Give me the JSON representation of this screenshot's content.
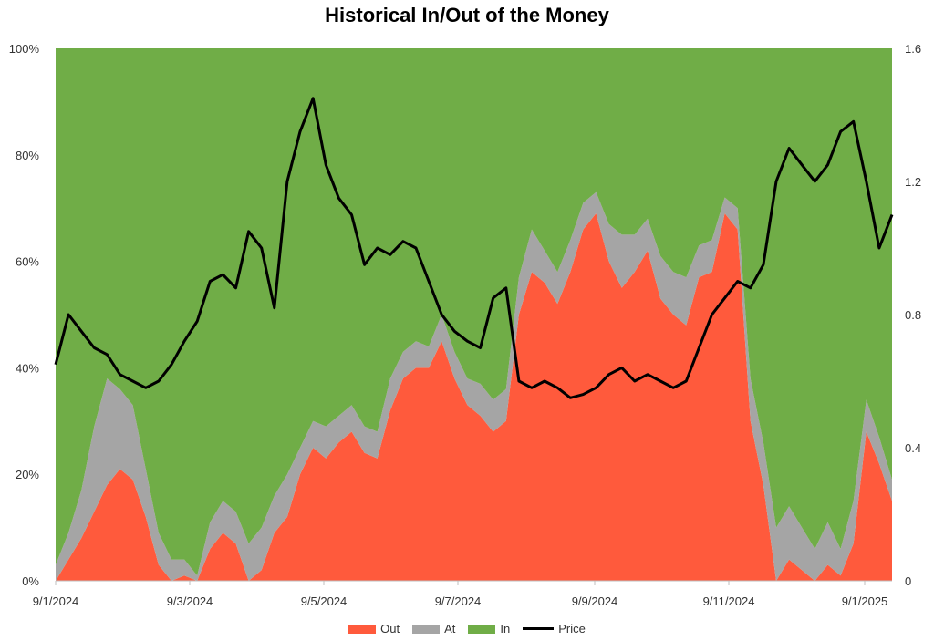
{
  "chart_data": {
    "type": "area",
    "title": "Historical In/Out of the Money",
    "x_tick_labels": [
      "9/1/2024",
      "9/3/2024",
      "9/5/2024",
      "9/7/2024",
      "9/9/2024",
      "9/11/2024",
      "9/1/2025"
    ],
    "y_left": {
      "ticks": [
        "0%",
        "20%",
        "40%",
        "60%",
        "80%",
        "100%"
      ],
      "range": [
        0,
        100
      ],
      "unit": "%"
    },
    "y_right": {
      "ticks": [
        "0",
        "0.4",
        "0.8",
        "1.2",
        "1.6"
      ],
      "range": [
        0,
        1.6
      ]
    },
    "stacked": true,
    "series": [
      {
        "name": "Out",
        "color": "#ff5a3c",
        "values": [
          0,
          4,
          8,
          13,
          18,
          21,
          19,
          12,
          3,
          0,
          1,
          0,
          6,
          9,
          7,
          0,
          2,
          9,
          12,
          20,
          25,
          23,
          26,
          28,
          24,
          23,
          32,
          38,
          40,
          40,
          45,
          38,
          33,
          31,
          28,
          30,
          50,
          58,
          56,
          52,
          58,
          66,
          69,
          60,
          55,
          58,
          62,
          53,
          50,
          48,
          57,
          58,
          69,
          66,
          30,
          18,
          0,
          4,
          2,
          0,
          3,
          1,
          7,
          28,
          22,
          15
        ]
      },
      {
        "name": "At",
        "color": "#a5a5a5",
        "values": [
          3,
          5,
          9,
          16,
          20,
          15,
          14,
          9,
          6,
          4,
          3,
          1,
          5,
          6,
          6,
          7,
          8,
          7,
          8,
          5,
          5,
          6,
          5,
          5,
          5,
          5,
          6,
          5,
          5,
          4,
          5,
          5,
          5,
          6,
          6,
          6,
          7,
          8,
          6,
          6,
          6,
          5,
          4,
          7,
          10,
          7,
          6,
          8,
          8,
          9,
          6,
          6,
          3,
          4,
          8,
          8,
          10,
          10,
          8,
          6,
          8,
          5,
          8,
          6,
          5,
          4
        ]
      },
      {
        "name": "In",
        "color": "#70ad47",
        "values": [
          97,
          91,
          83,
          71,
          62,
          64,
          67,
          79,
          91,
          96,
          96,
          99,
          89,
          85,
          87,
          93,
          90,
          84,
          80,
          75,
          70,
          71,
          69,
          67,
          71,
          72,
          62,
          57,
          55,
          56,
          50,
          57,
          62,
          63,
          66,
          64,
          43,
          34,
          38,
          42,
          36,
          29,
          27,
          33,
          35,
          35,
          32,
          39,
          42,
          43,
          37,
          36,
          28,
          30,
          62,
          74,
          90,
          86,
          90,
          94,
          89,
          94,
          85,
          66,
          73,
          81
        ]
      },
      {
        "name": "Price",
        "color": "#000000",
        "axis": "right",
        "values": [
          0.65,
          0.8,
          0.75,
          0.7,
          0.68,
          0.62,
          0.6,
          0.58,
          0.6,
          0.65,
          0.72,
          0.78,
          0.9,
          0.92,
          0.88,
          1.05,
          1.0,
          0.82,
          1.2,
          1.35,
          1.45,
          1.25,
          1.15,
          1.1,
          0.95,
          1.0,
          0.98,
          1.02,
          1.0,
          0.9,
          0.8,
          0.75,
          0.72,
          0.7,
          0.85,
          0.88,
          0.6,
          0.58,
          0.6,
          0.58,
          0.55,
          0.56,
          0.58,
          0.62,
          0.64,
          0.6,
          0.62,
          0.6,
          0.58,
          0.6,
          0.7,
          0.8,
          0.85,
          0.9,
          0.88,
          0.95,
          1.2,
          1.3,
          1.25,
          1.2,
          1.25,
          1.35,
          1.38,
          1.2,
          1.0,
          1.1
        ]
      }
    ],
    "legend": {
      "position": "bottom",
      "entries": [
        "Out",
        "At",
        "In",
        "Price"
      ]
    },
    "grid": false
  }
}
